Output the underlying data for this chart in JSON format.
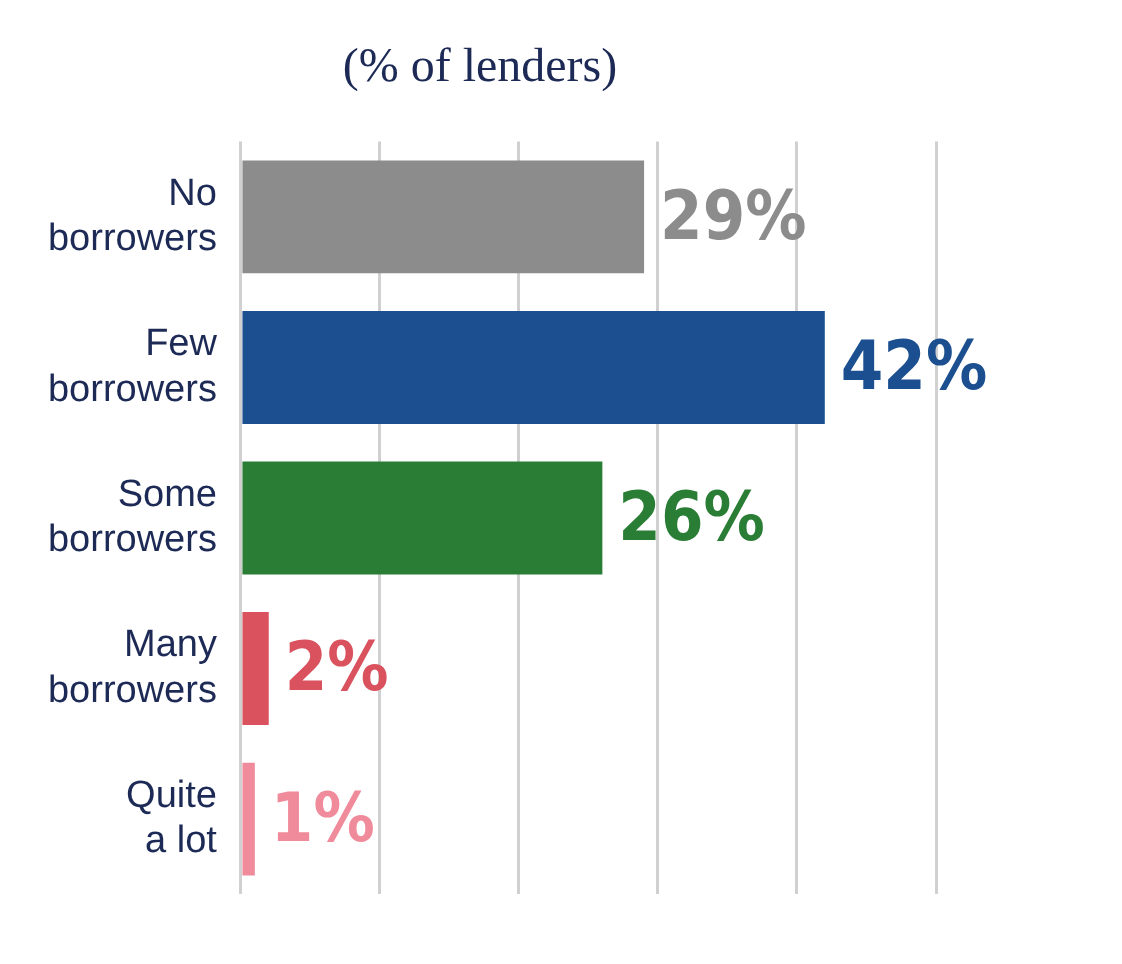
{
  "chart_data": {
    "type": "bar",
    "orientation": "horizontal",
    "title": "(% of lenders)",
    "categories": [
      "No borrowers",
      "Few borrowers",
      "Some borrowers",
      "Many borrowers",
      "Quite a lot"
    ],
    "values": [
      29,
      42,
      26,
      2,
      1
    ],
    "colors": [
      "#8c8c8c",
      "#1b4f8f",
      "#2a7d34",
      "#d9525e",
      "#f08b9c"
    ],
    "value_labels": [
      "29%",
      "42%",
      "26%",
      "2%",
      "1%"
    ],
    "xlim": [
      0,
      50
    ],
    "xticks": [
      {
        "value": 0,
        "label": null
      },
      {
        "value": 10,
        "label": null
      },
      {
        "value": 20,
        "label": null
      },
      {
        "value": 30,
        "label": null
      },
      {
        "value": 40,
        "label": null
      },
      {
        "value": 50,
        "label": null
      }
    ],
    "grid": "x",
    "legend": false
  }
}
